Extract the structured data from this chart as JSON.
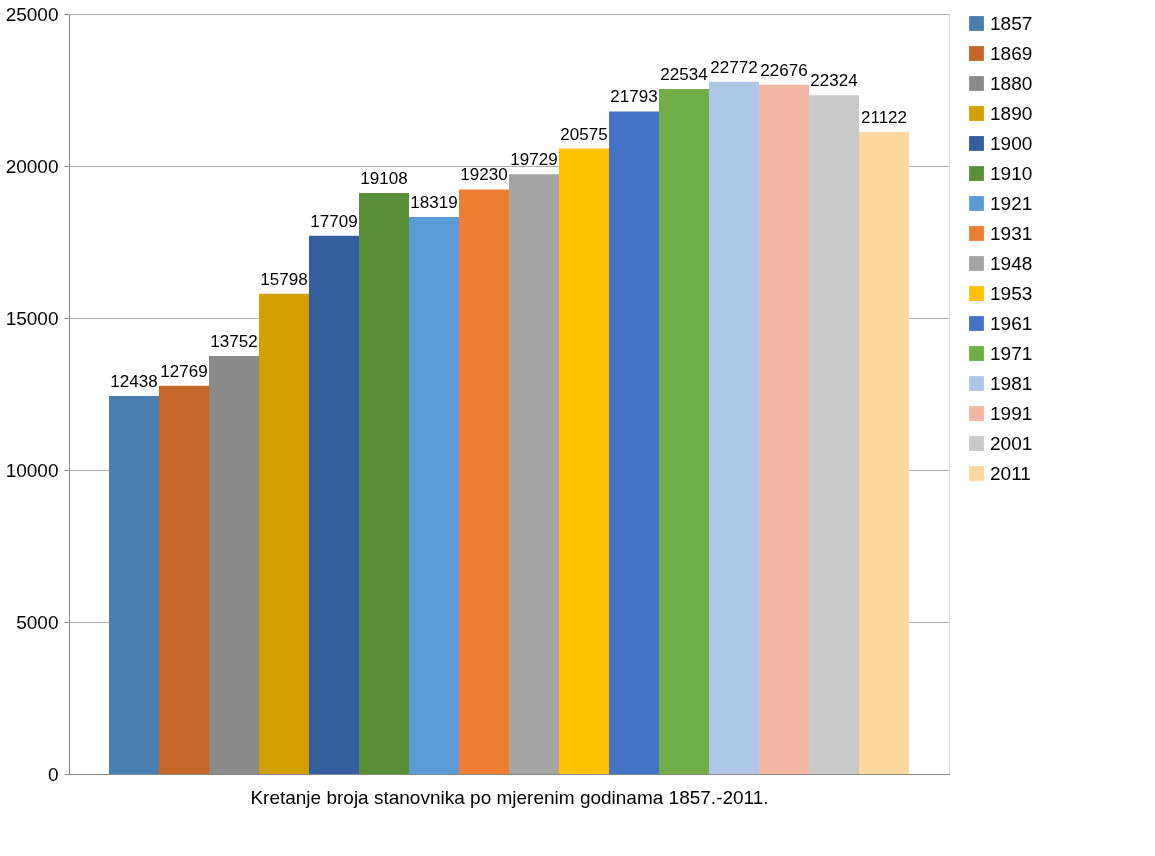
{
  "chart_data": {
    "type": "bar",
    "xlabel": "Kretanje broja stanovnika po mjerenim godinama 1857.-2011.",
    "categories": [
      null
    ],
    "series": [
      {
        "name": "1857",
        "color": "#4a7eb0",
        "values": [
          12438
        ]
      },
      {
        "name": "1869",
        "color": "#c5672b",
        "values": [
          12769
        ]
      },
      {
        "name": "1880",
        "color": "#8a8a8a",
        "values": [
          13752
        ]
      },
      {
        "name": "1890",
        "color": "#d2a000",
        "values": [
          15798
        ]
      },
      {
        "name": "1900",
        "color": "#355e9e",
        "values": [
          17709
        ]
      },
      {
        "name": "1910",
        "color": "#5a8f3a",
        "values": [
          19108
        ]
      },
      {
        "name": "1921",
        "color": "#5b9bd5",
        "values": [
          18319
        ]
      },
      {
        "name": "1931",
        "color": "#ed7d31",
        "values": [
          19230
        ]
      },
      {
        "name": "1948",
        "color": "#a5a5a5",
        "values": [
          19729
        ]
      },
      {
        "name": "1953",
        "color": "#ffc000",
        "values": [
          20575
        ]
      },
      {
        "name": "1961",
        "color": "#4472c4",
        "values": [
          21793
        ]
      },
      {
        "name": "1971",
        "color": "#70ad47",
        "values": [
          22534
        ]
      },
      {
        "name": "1981",
        "color": "#adc5e6",
        "values": [
          22772
        ]
      },
      {
        "name": "1991",
        "color": "#f2b6a2",
        "values": [
          22676
        ]
      },
      {
        "name": "2001",
        "color": "#c9c9c9",
        "values": [
          22324
        ]
      },
      {
        "name": "2011",
        "color": "#ffd8a0",
        "values": [
          21122
        ]
      }
    ],
    "ylim": [
      0,
      25000
    ],
    "yticks": [
      0,
      5000,
      10000,
      15000,
      20000,
      25000
    ],
    "grid": "y",
    "legend": "right",
    "data_labels": true,
    "tick_labels": "y"
  }
}
